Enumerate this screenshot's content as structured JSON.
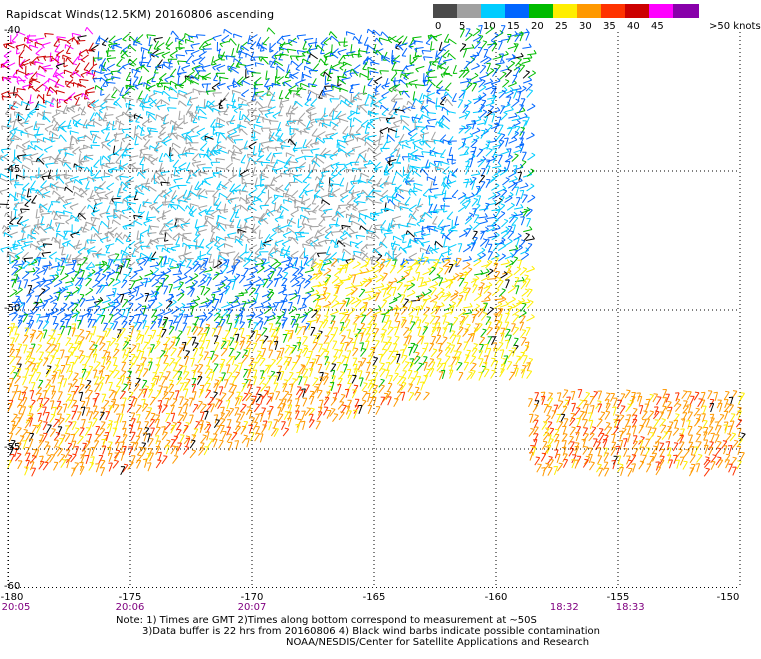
{
  "title": "Rapidscat Winds(12.5KM) 20160806 ascending",
  "legend": {
    "unit": ">50 knots",
    "bins": [
      {
        "label": "0",
        "color": "#4a4a4a"
      },
      {
        "label": "5",
        "color": "#a0a0a0"
      },
      {
        "label": "10",
        "color": "#00ccff"
      },
      {
        "label": "15",
        "color": "#0066ff"
      },
      {
        "label": "20",
        "color": "#00bb00"
      },
      {
        "label": "25",
        "color": "#ffee00"
      },
      {
        "label": "30",
        "color": "#ff9900"
      },
      {
        "label": "35",
        "color": "#ff3300"
      },
      {
        "label": "40",
        "color": "#cc0000"
      },
      {
        "label": "45",
        "color": "#ff00ff"
      },
      {
        "label": "",
        "color": "#8800aa"
      }
    ]
  },
  "map": {
    "lon_ticks": [
      "-180",
      "-175",
      "-170",
      "-165",
      "-160",
      "-155",
      "-150"
    ],
    "lat_ticks": [
      "-40",
      "-45",
      "-50",
      "-55",
      "-60"
    ],
    "lat_lines": [
      -45,
      -50,
      -55
    ],
    "lon_range": [
      -180,
      -150
    ],
    "lat_range": [
      -40,
      -60
    ]
  },
  "times": [
    {
      "label": "20:05",
      "lon": -180
    },
    {
      "label": "20:06",
      "lon": -175
    },
    {
      "label": "20:07",
      "lon": -170
    },
    {
      "label": "18:32",
      "lon": -157.2
    },
    {
      "label": "18:33",
      "lon": -154.5
    }
  ],
  "notes": {
    "line1": "Note: 1) Times are GMT 2)Times along bottom correspond to measurement at ~50S",
    "line2": "3)Data buffer is 22 hrs from 20160806 4) Black wind barbs indicate possible contamination",
    "line3": "NOAA/NESDIS/Center for Satellite Applications and Research"
  }
}
